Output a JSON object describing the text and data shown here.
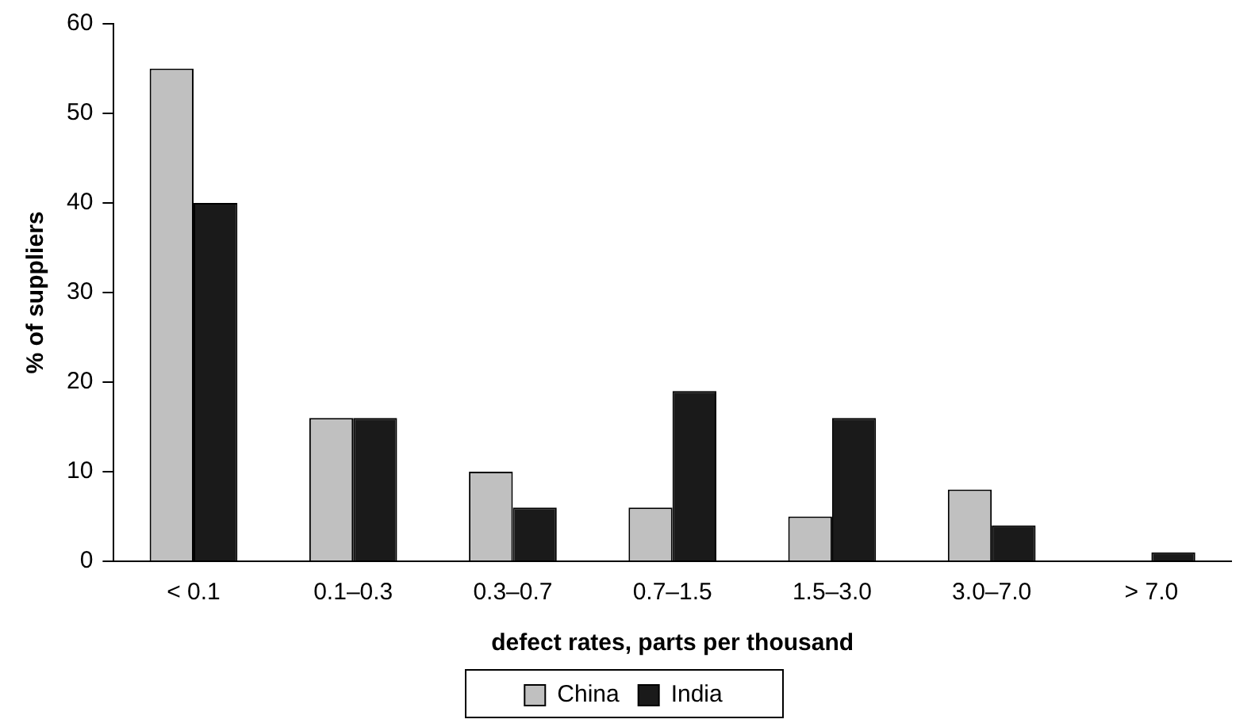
{
  "chart_data": {
    "type": "bar",
    "xlabel": "defect rates, parts per thousand",
    "ylabel": "% of suppliers",
    "categories": [
      "< 0.1",
      "0.1–0.3",
      "0.3–0.7",
      "0.7–1.5",
      "1.5–3.0",
      "3.0–7.0",
      "> 7.0"
    ],
    "series": [
      {
        "name": "China",
        "color": "#c0c0c0",
        "values": [
          55,
          16,
          10,
          6,
          5,
          8,
          0
        ]
      },
      {
        "name": "India",
        "color": "#1a1a1a",
        "values": [
          40,
          16,
          6,
          19,
          16,
          4,
          1
        ]
      }
    ],
    "ylim": [
      0,
      60
    ],
    "yticks": [
      0,
      10,
      20,
      30,
      40,
      50,
      60
    ],
    "grid": false,
    "legend": "bottom"
  }
}
